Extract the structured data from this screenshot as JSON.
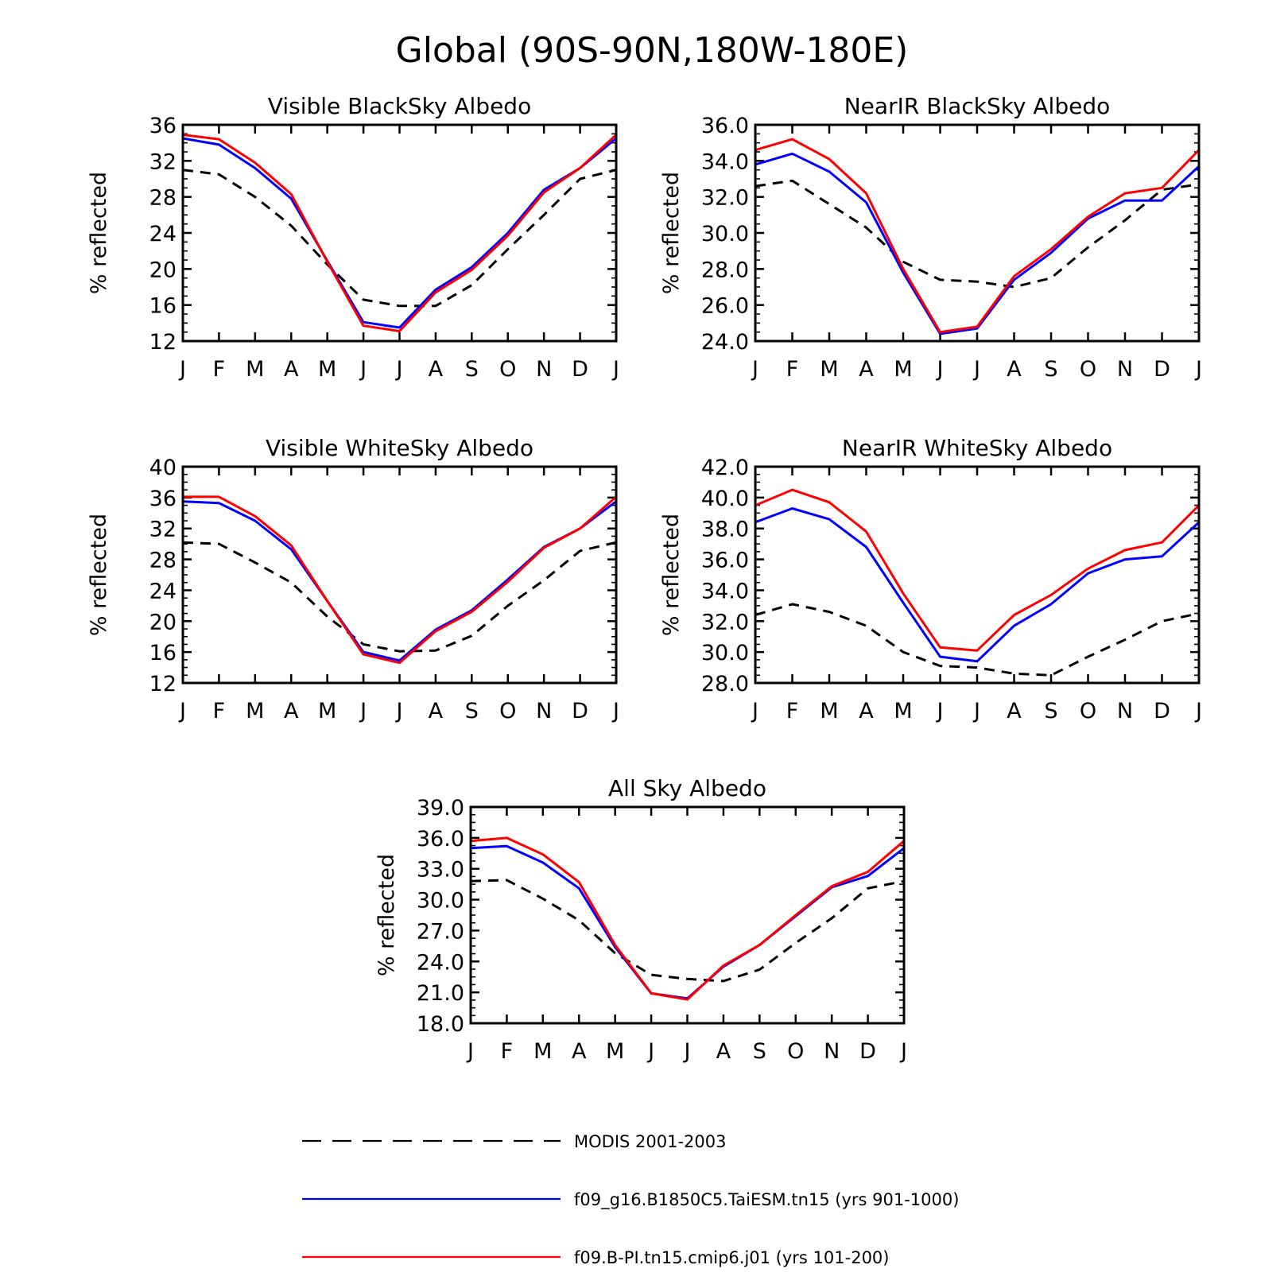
{
  "title": "Global (90S-90N,180W-180E)",
  "colors": {
    "modis": "#000000",
    "taiesm": "#0000ff",
    "cmip6": "#ff0000"
  },
  "legend": [
    {
      "key": "modis",
      "label": "MODIS 2001-2003",
      "dash": true
    },
    {
      "key": "taiesm",
      "label": "f09_g16.B1850C5.TaiESM.tn15 (yrs 901-1000)",
      "dash": false
    },
    {
      "key": "cmip6",
      "label": "f09.B-PI.tn15.cmip6.j01 (yrs 101-200)",
      "dash": false
    }
  ],
  "chart_data": [
    {
      "type": "line",
      "title": "Visible BlackSky Albedo",
      "ylabel": "% reflected",
      "categories": [
        "J",
        "F",
        "M",
        "A",
        "M",
        "J",
        "J",
        "A",
        "S",
        "O",
        "N",
        "D",
        "J"
      ],
      "ylim": [
        12,
        36
      ],
      "yticks": [
        12,
        16,
        20,
        24,
        28,
        32,
        36
      ],
      "ytick_decimals": 0,
      "series": [
        {
          "key": "modis",
          "values": [
            31.0,
            30.5,
            28.0,
            24.8,
            20.5,
            16.6,
            15.9,
            15.9,
            18.2,
            22.2,
            26.0,
            30.0,
            31.0
          ]
        },
        {
          "key": "taiesm",
          "values": [
            34.5,
            33.8,
            31.2,
            27.8,
            20.9,
            14.1,
            13.5,
            17.7,
            20.2,
            24.0,
            28.8,
            31.2,
            34.5
          ]
        },
        {
          "key": "cmip6",
          "values": [
            34.9,
            34.4,
            31.8,
            28.3,
            20.8,
            13.7,
            13.1,
            17.4,
            19.9,
            23.7,
            28.5,
            31.2,
            34.9
          ]
        }
      ]
    },
    {
      "type": "line",
      "title": "NearIR BlackSky Albedo",
      "ylabel": "% reflected",
      "categories": [
        "J",
        "F",
        "M",
        "A",
        "M",
        "J",
        "J",
        "A",
        "S",
        "O",
        "N",
        "D",
        "J"
      ],
      "ylim": [
        24,
        36
      ],
      "yticks": [
        24,
        26,
        28,
        30,
        32,
        34,
        36
      ],
      "ytick_decimals": 1,
      "series": [
        {
          "key": "modis",
          "values": [
            32.6,
            32.9,
            31.6,
            30.3,
            28.4,
            27.4,
            27.3,
            27.0,
            27.5,
            29.2,
            30.7,
            32.4,
            32.7
          ]
        },
        {
          "key": "taiesm",
          "values": [
            33.8,
            34.4,
            33.4,
            31.7,
            27.8,
            24.4,
            24.7,
            27.4,
            28.9,
            30.8,
            31.8,
            31.8,
            33.7
          ]
        },
        {
          "key": "cmip6",
          "values": [
            34.6,
            35.2,
            34.1,
            32.2,
            28.0,
            24.5,
            24.8,
            27.6,
            29.1,
            30.9,
            32.2,
            32.5,
            34.6
          ]
        }
      ]
    },
    {
      "type": "line",
      "title": "Visible WhiteSky Albedo",
      "ylabel": "% reflected",
      "categories": [
        "J",
        "F",
        "M",
        "A",
        "M",
        "J",
        "J",
        "A",
        "S",
        "O",
        "N",
        "D",
        "J"
      ],
      "ylim": [
        12,
        40
      ],
      "yticks": [
        12,
        16,
        20,
        24,
        28,
        32,
        36,
        40
      ],
      "ytick_decimals": 0,
      "series": [
        {
          "key": "modis",
          "values": [
            30.2,
            30.0,
            27.6,
            25.0,
            20.6,
            17.0,
            16.1,
            16.2,
            18.1,
            22.0,
            25.3,
            29.1,
            30.2
          ]
        },
        {
          "key": "taiesm",
          "values": [
            35.5,
            35.3,
            33.0,
            29.3,
            22.6,
            16.0,
            14.9,
            18.9,
            21.4,
            25.4,
            29.6,
            32.0,
            35.5
          ]
        },
        {
          "key": "cmip6",
          "values": [
            36.1,
            36.1,
            33.6,
            29.8,
            22.6,
            15.7,
            14.6,
            18.7,
            21.2,
            25.1,
            29.5,
            32.0,
            36.1
          ]
        }
      ]
    },
    {
      "type": "line",
      "title": "NearIR WhiteSky Albedo",
      "ylabel": "% reflected",
      "categories": [
        "J",
        "F",
        "M",
        "A",
        "M",
        "J",
        "J",
        "A",
        "S",
        "O",
        "N",
        "D",
        "J"
      ],
      "ylim": [
        28,
        42
      ],
      "yticks": [
        28,
        30,
        32,
        34,
        36,
        38,
        40,
        42
      ],
      "ytick_decimals": 1,
      "series": [
        {
          "key": "modis",
          "values": [
            32.4,
            33.1,
            32.6,
            31.7,
            30.0,
            29.1,
            29.0,
            28.6,
            28.5,
            29.7,
            30.8,
            32.0,
            32.5
          ]
        },
        {
          "key": "taiesm",
          "values": [
            38.4,
            39.3,
            38.6,
            36.8,
            33.2,
            29.7,
            29.4,
            31.7,
            33.1,
            35.1,
            36.0,
            36.2,
            38.4
          ]
        },
        {
          "key": "cmip6",
          "values": [
            39.5,
            40.5,
            39.7,
            37.8,
            33.8,
            30.3,
            30.1,
            32.4,
            33.7,
            35.4,
            36.6,
            37.1,
            39.5
          ]
        }
      ]
    },
    {
      "type": "line",
      "title": "All Sky Albedo",
      "ylabel": "% reflected",
      "categories": [
        "J",
        "F",
        "M",
        "A",
        "M",
        "J",
        "J",
        "A",
        "S",
        "O",
        "N",
        "D",
        "J"
      ],
      "ylim": [
        18,
        39
      ],
      "yticks": [
        18,
        21,
        24,
        27,
        30,
        33,
        36,
        39
      ],
      "ytick_decimals": 1,
      "series": [
        {
          "key": "modis",
          "values": [
            31.8,
            31.9,
            30.1,
            28.0,
            24.8,
            22.7,
            22.3,
            22.1,
            23.2,
            25.8,
            28.2,
            31.1,
            31.8
          ]
        },
        {
          "key": "taiesm",
          "values": [
            35.0,
            35.2,
            33.6,
            31.1,
            25.4,
            20.9,
            20.4,
            23.5,
            25.6,
            28.4,
            31.2,
            32.3,
            35.0
          ]
        },
        {
          "key": "cmip6",
          "values": [
            35.7,
            36.0,
            34.4,
            31.7,
            25.6,
            20.9,
            20.3,
            23.6,
            25.6,
            28.5,
            31.3,
            32.7,
            35.7
          ]
        }
      ]
    }
  ]
}
